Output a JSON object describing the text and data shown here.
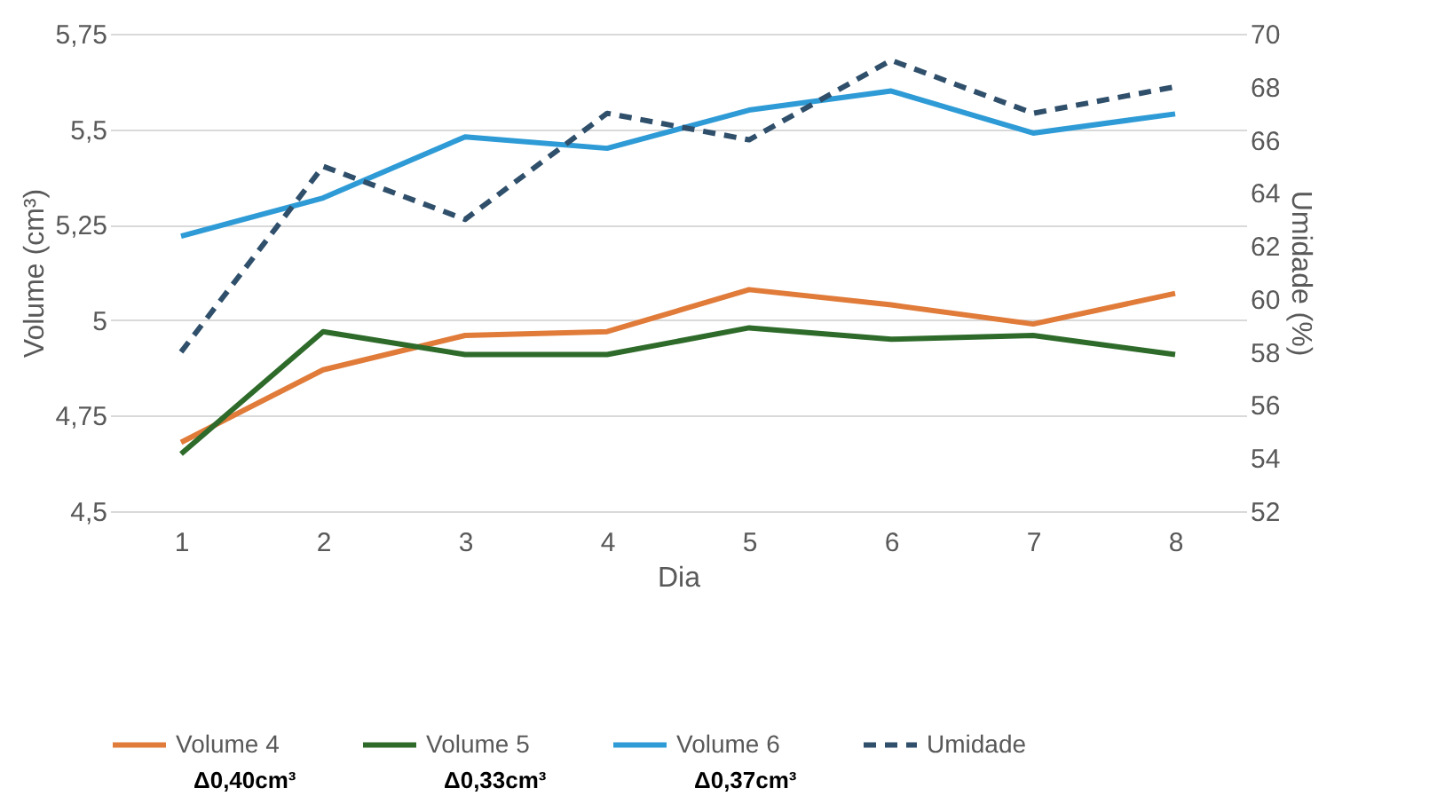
{
  "chart_data": {
    "type": "line",
    "xlabel": "Dia",
    "ylabel": "Volume (cm³)",
    "y2label": "Umidade (%)",
    "categories": [
      "1",
      "2",
      "3",
      "4",
      "5",
      "6",
      "7",
      "8"
    ],
    "series": [
      {
        "name": "Volume 4",
        "color": "#e07b39",
        "values": [
          4.68,
          4.87,
          4.96,
          4.97,
          5.08,
          5.04,
          4.99,
          5.07
        ]
      },
      {
        "name": "Volume 5",
        "color": "#2e6b2a",
        "values": [
          4.65,
          4.97,
          4.91,
          4.91,
          4.98,
          4.95,
          4.96,
          4.91
        ]
      },
      {
        "name": "Volume 6",
        "color": "#2e9bd6",
        "values": [
          5.22,
          5.32,
          5.48,
          5.45,
          5.55,
          5.6,
          5.49,
          5.54
        ]
      },
      {
        "name": "Umidade",
        "color": "#2f4f6b",
        "axis": "y2",
        "line_style": "dashed",
        "values": [
          58,
          65,
          63,
          67,
          66,
          69,
          67,
          68
        ]
      }
    ],
    "ylim": [
      4.5,
      5.75
    ],
    "yticks": [
      {
        "value": 4.5,
        "label": "4,5"
      },
      {
        "value": 4.75,
        "label": "4,75"
      },
      5,
      {
        "value": 5.25,
        "label": "5,25"
      },
      {
        "value": 5.5,
        "label": "5,5"
      },
      {
        "value": 5.75,
        "label": "5,75"
      }
    ],
    "y2lim": [
      52,
      70
    ],
    "y2ticks": [
      52,
      54,
      56,
      58,
      60,
      62,
      64,
      66,
      68,
      70
    ],
    "grid": "y",
    "legend": "bottom",
    "line_style": "solid",
    "marker": "none",
    "annotations": [
      "Δ0,40cm³",
      "Δ0,33cm³",
      "Δ0,37cm³"
    ]
  }
}
